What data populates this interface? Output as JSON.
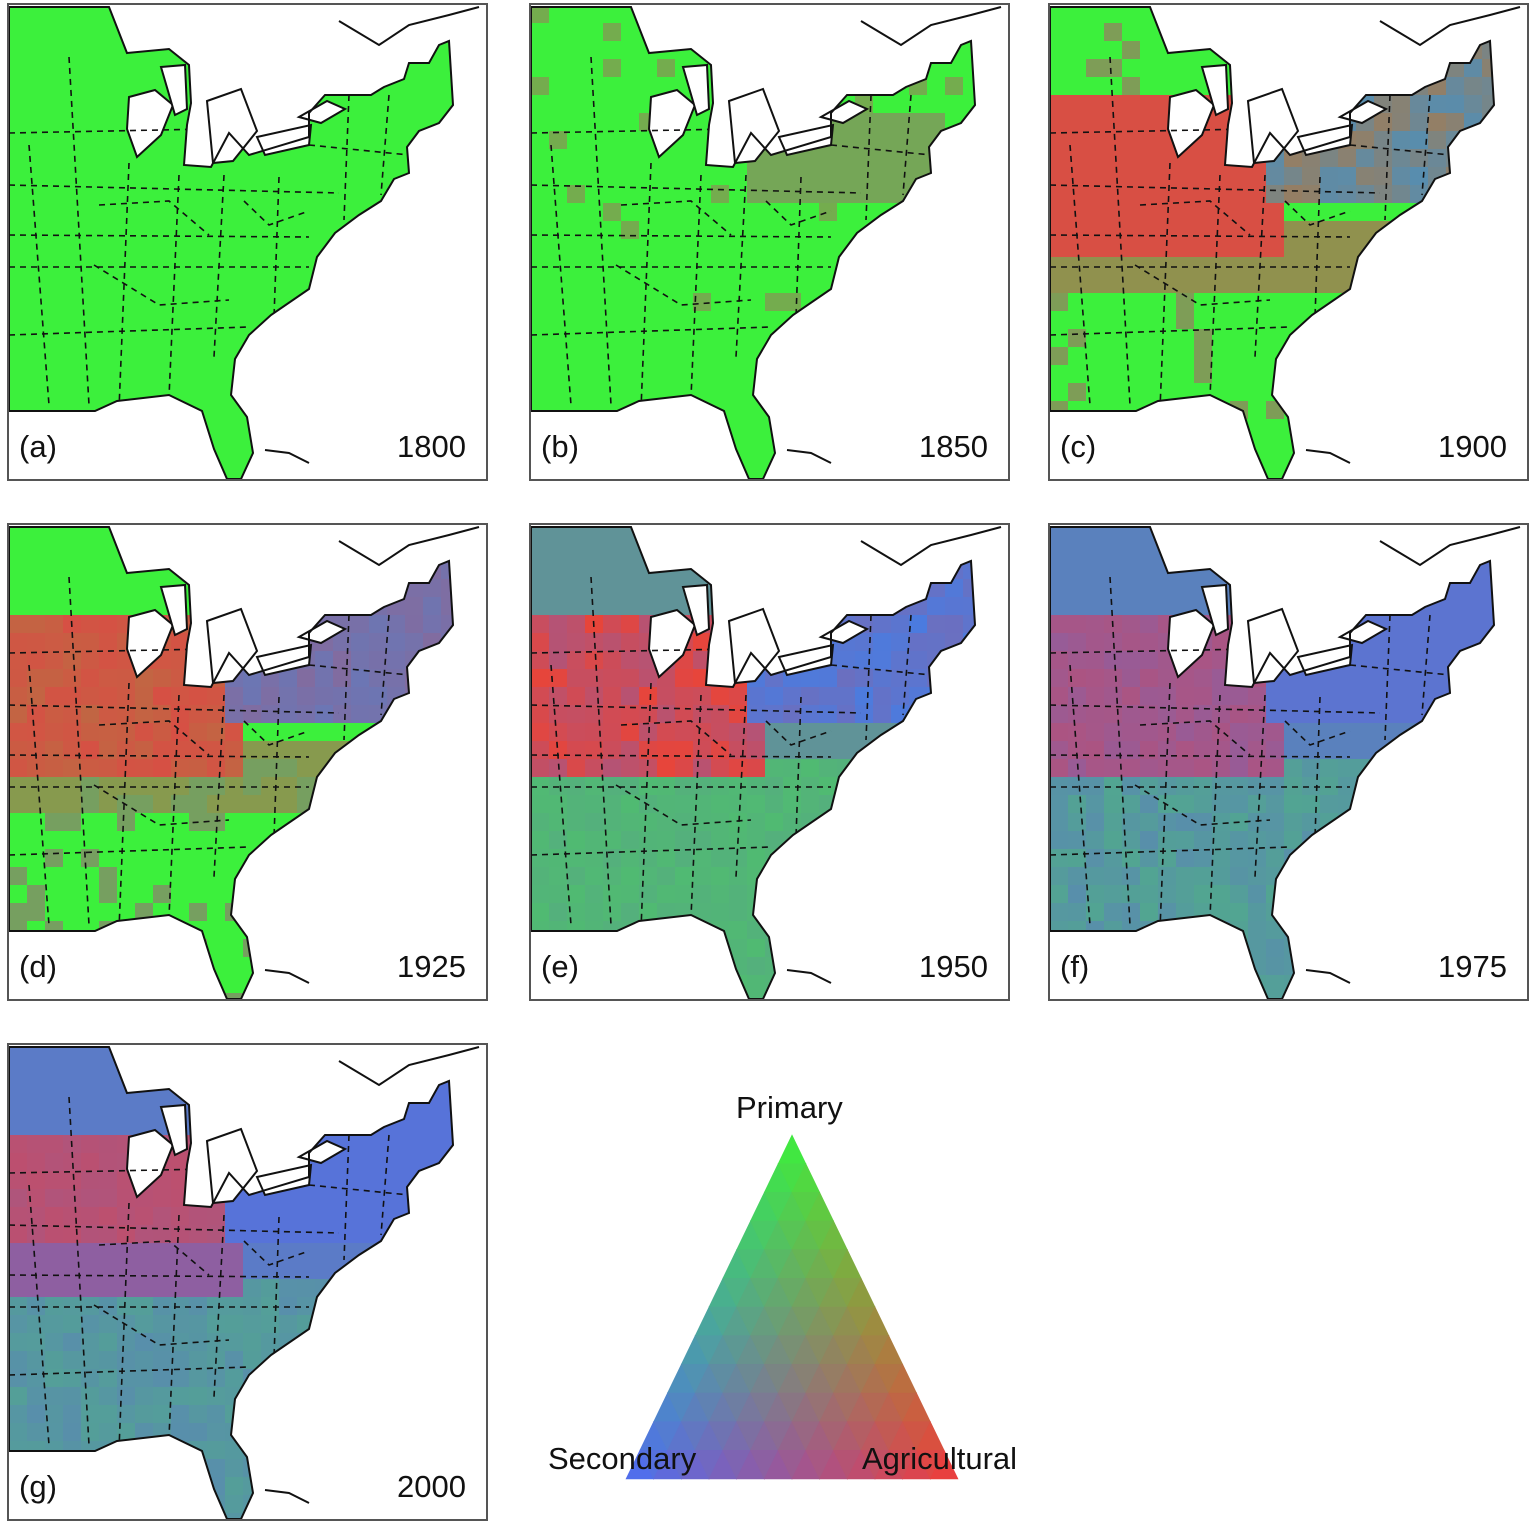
{
  "legend": {
    "top": "Primary",
    "left": "Secondary",
    "right": "Agricultural",
    "colors": {
      "primary": "#3cf03c",
      "secondary": "#4d6cf5",
      "agricultural": "#f23a3a"
    }
  },
  "panels": [
    {
      "label": "(a)",
      "year": "1800"
    },
    {
      "label": "(b)",
      "year": "1850"
    },
    {
      "label": "(c)",
      "year": "1900"
    },
    {
      "label": "(d)",
      "year": "1925"
    },
    {
      "label": "(e)",
      "year": "1950"
    },
    {
      "label": "(f)",
      "year": "1975"
    },
    {
      "label": "(g)",
      "year": "2000"
    }
  ]
}
